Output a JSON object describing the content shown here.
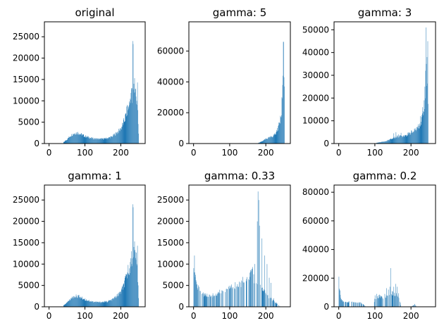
{
  "figure": {
    "bar_color": "#1f77b4",
    "axes_color": "#000000",
    "background": "#ffffff"
  },
  "chart_data": [
    {
      "type": "bar",
      "title": "original",
      "xlim": [
        -13,
        268
      ],
      "ylim": [
        0,
        28500
      ],
      "xticks": [
        0,
        100,
        200
      ],
      "yticks": [
        0,
        5000,
        10000,
        15000,
        20000,
        25000
      ],
      "series": [
        {
          "anchors": [
            [
              40,
              300
            ],
            [
              50,
              1000
            ],
            [
              60,
              1900
            ],
            [
              70,
              2400
            ],
            [
              80,
              2500
            ],
            [
              90,
              2100
            ],
            [
              100,
              1700
            ],
            [
              120,
              1200
            ],
            [
              140,
              1050
            ],
            [
              160,
              1200
            ],
            [
              175,
              1600
            ],
            [
              190,
              2600
            ],
            [
              200,
              3500
            ],
            [
              210,
              5500
            ],
            [
              218,
              8000
            ],
            [
              225,
              9500
            ],
            [
              232,
              12000
            ],
            [
              240,
              12500
            ],
            [
              246,
              9000
            ],
            [
              250,
              0
            ]
          ],
          "peaks": [
            [
              224,
              9000
            ],
            [
              226,
              10500
            ],
            [
              229,
              13000
            ],
            [
              231,
              9500
            ],
            [
              233,
              24000
            ],
            [
              234,
              23300
            ],
            [
              236,
              14000
            ],
            [
              238,
              15300
            ],
            [
              240,
              12800
            ],
            [
              242,
              11000
            ],
            [
              244,
              10000
            ],
            [
              246,
              14300
            ]
          ]
        }
      ]
    },
    {
      "type": "bar",
      "title": "gamma: 5",
      "xlim": [
        -13,
        268
      ],
      "ylim": [
        0,
        79000
      ],
      "xticks": [
        0,
        100,
        200
      ],
      "yticks": [
        0,
        20000,
        40000,
        60000
      ],
      "series": [
        {
          "anchors": [
            [
              178,
              300
            ],
            [
              190,
              1500
            ],
            [
              200,
              3000
            ],
            [
              210,
              3800
            ],
            [
              220,
              5000
            ],
            [
              228,
              7000
            ],
            [
              233,
              10000
            ],
            [
              238,
              14000
            ],
            [
              242,
              20000
            ],
            [
              245,
              27000
            ],
            [
              248,
              35000
            ],
            [
              250,
              40000
            ],
            [
              252,
              0
            ]
          ],
          "peaks": [
            [
              240,
              18000
            ],
            [
              244,
              30000
            ],
            [
              246,
              38000
            ],
            [
              247,
              44000
            ],
            [
              248,
              66000
            ],
            [
              249,
              66000
            ],
            [
              250,
              43000
            ],
            [
              251,
              37000
            ]
          ]
        }
      ]
    },
    {
      "type": "bar",
      "title": "gamma: 3",
      "xlim": [
        -13,
        268
      ],
      "ylim": [
        0,
        53500
      ],
      "xticks": [
        0,
        100,
        200
      ],
      "yticks": [
        0,
        10000,
        20000,
        30000,
        40000,
        50000
      ],
      "series": [
        {
          "anchors": [
            [
              100,
              0
            ],
            [
              105,
              300
            ],
            [
              130,
              1000
            ],
            [
              145,
              2000
            ],
            [
              160,
              3000
            ],
            [
              175,
              3300
            ],
            [
              190,
              4000
            ],
            [
              205,
              5000
            ],
            [
              215,
              6500
            ],
            [
              222,
              8000
            ],
            [
              228,
              10000
            ],
            [
              233,
              14000
            ],
            [
              237,
              18000
            ],
            [
              240,
              22000
            ],
            [
              243,
              27000
            ],
            [
              246,
              30000
            ],
            [
              248,
              0
            ]
          ],
          "peaks": [
            [
              152,
              4500
            ],
            [
              158,
              5000
            ],
            [
              165,
              4000
            ],
            [
              172,
              4700
            ],
            [
              200,
              5800
            ],
            [
              212,
              6000
            ],
            [
              220,
              8500
            ],
            [
              226,
              12000
            ],
            [
              232,
              16000
            ],
            [
              236,
              19000
            ],
            [
              238,
              25000
            ],
            [
              240,
              32000
            ],
            [
              241,
              51000
            ],
            [
              242,
              35000
            ],
            [
              244,
              38000
            ],
            [
              246,
              45000
            ]
          ]
        }
      ]
    },
    {
      "type": "bar",
      "title": "gamma: 1",
      "xlim": [
        -13,
        268
      ],
      "ylim": [
        0,
        28500
      ],
      "xticks": [
        0,
        100,
        200
      ],
      "yticks": [
        0,
        5000,
        10000,
        15000,
        20000,
        25000
      ],
      "series": [
        {
          "anchors": [
            [
              40,
              300
            ],
            [
              50,
              1000
            ],
            [
              60,
              1900
            ],
            [
              70,
              2400
            ],
            [
              80,
              2500
            ],
            [
              90,
              2100
            ],
            [
              100,
              1700
            ],
            [
              120,
              1200
            ],
            [
              140,
              1050
            ],
            [
              160,
              1200
            ],
            [
              175,
              1600
            ],
            [
              190,
              2600
            ],
            [
              200,
              3500
            ],
            [
              210,
              5500
            ],
            [
              218,
              8000
            ],
            [
              225,
              9500
            ],
            [
              232,
              12000
            ],
            [
              240,
              12500
            ],
            [
              246,
              9000
            ],
            [
              250,
              0
            ]
          ],
          "peaks": [
            [
              224,
              9000
            ],
            [
              226,
              10500
            ],
            [
              229,
              13000
            ],
            [
              231,
              9500
            ],
            [
              233,
              24000
            ],
            [
              234,
              23300
            ],
            [
              236,
              14000
            ],
            [
              238,
              15300
            ],
            [
              240,
              12800
            ],
            [
              242,
              11000
            ],
            [
              244,
              10000
            ],
            [
              246,
              14300
            ]
          ]
        }
      ]
    },
    {
      "type": "bar",
      "title": "gamma: 0.33",
      "xlim": [
        -13,
        268
      ],
      "ylim": [
        0,
        28500
      ],
      "xticks": [
        0,
        100,
        200
      ],
      "yticks": [
        0,
        5000,
        10000,
        15000,
        20000,
        25000
      ],
      "series": [
        {
          "anchors": [
            [
              0,
              10000
            ],
            [
              3,
              8000
            ],
            [
              8,
              5500
            ],
            [
              15,
              4000
            ],
            [
              25,
              3000
            ],
            [
              40,
              2500
            ],
            [
              60,
              2800
            ],
            [
              80,
              3800
            ],
            [
              100,
              4500
            ],
            [
              110,
              5000
            ],
            [
              130,
              5500
            ],
            [
              150,
              7000
            ],
            [
              160,
              8500
            ],
            [
              170,
              9500
            ],
            [
              180,
              5000
            ],
            [
              190,
              4000
            ],
            [
              200,
              3000
            ],
            [
              210,
              2000
            ],
            [
              220,
              1500
            ],
            [
              230,
              800
            ],
            [
              240,
              0
            ]
          ],
          "peaks": [
            [
              2,
              12000
            ],
            [
              140,
              5700
            ],
            [
              145,
              6000
            ],
            [
              152,
              6500
            ],
            [
              156,
              7000
            ],
            [
              160,
              8500
            ],
            [
              163,
              9300
            ],
            [
              167,
              5500
            ],
            [
              173,
              5500
            ],
            [
              176,
              20000
            ],
            [
              178,
              27000
            ],
            [
              180,
              25000
            ],
            [
              182,
              19000
            ],
            [
              189,
              16000
            ],
            [
              196,
              12000
            ],
            [
              203,
              10000
            ],
            [
              209,
              6800
            ],
            [
              214,
              5600
            ],
            [
              221,
              2000
            ]
          ],
          "gaps": true
        }
      ]
    },
    {
      "type": "bar",
      "title": "gamma: 0.2",
      "xlim": [
        -13,
        268
      ],
      "ylim": [
        0,
        85000
      ],
      "xticks": [
        0,
        100,
        200
      ],
      "yticks": [
        0,
        20000,
        40000,
        60000,
        80000
      ],
      "series": [
        {
          "anchors": [
            [
              0,
              15000
            ],
            [
              5,
              6000
            ],
            [
              10,
              4000
            ],
            [
              30,
              3500
            ],
            [
              60,
              3000
            ],
            [
              75,
              0
            ],
            [
              95,
              0
            ],
            [
              100,
              6000
            ],
            [
              110,
              7000
            ],
            [
              125,
              6000
            ],
            [
              135,
              8000
            ],
            [
              145,
              10000
            ],
            [
              155,
              9000
            ],
            [
              165,
              8000
            ],
            [
              172,
              0
            ],
            [
              200,
              0
            ],
            [
              210,
              1500
            ],
            [
              215,
              0
            ]
          ],
          "peaks": [
            [
              0,
              21000
            ],
            [
              2,
              12000
            ],
            [
              100,
              8000
            ],
            [
              105,
              9000
            ],
            [
              112,
              8500
            ],
            [
              118,
              7500
            ],
            [
              127,
              9000
            ],
            [
              132,
              13000
            ],
            [
              137,
              12000
            ],
            [
              141,
              14000
            ],
            [
              143,
              27000
            ],
            [
              147,
              11000
            ],
            [
              152,
              14000
            ],
            [
              157,
              16000
            ],
            [
              161,
              14000
            ],
            [
              165,
              9500
            ],
            [
              210,
              2000
            ]
          ],
          "gaps": true
        }
      ]
    }
  ]
}
